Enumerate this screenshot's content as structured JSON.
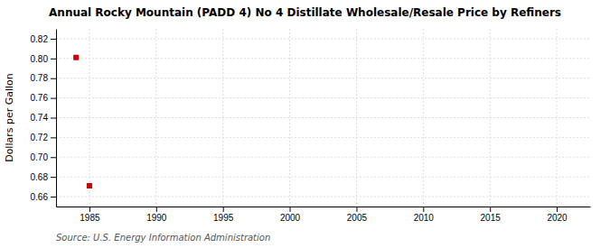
{
  "chart_data": {
    "type": "scatter",
    "title": "Annual Rocky Mountain (PADD 4) No 4 Distillate Wholesale/Resale Price by Refiners",
    "y_label": "Dollars per Gallon",
    "source": "Source: U.S. Energy Information Administration",
    "x": [
      1984,
      1985
    ],
    "values": [
      0.801,
      0.671
    ],
    "color": "#cc0000",
    "marker": "square",
    "xlim": [
      1982.5,
      2022.5
    ],
    "ylim": [
      0.65,
      0.83
    ],
    "xticks": [
      1985,
      1990,
      1995,
      2000,
      2005,
      2010,
      2015,
      2020
    ],
    "yticks": [
      0.66,
      0.68,
      {
        "value": 0.7,
        "label": "0.70"
      },
      0.72,
      0.74,
      0.76,
      0.78,
      {
        "value": 0.8,
        "label": "0.80"
      },
      0.82
    ],
    "grid": true
  }
}
